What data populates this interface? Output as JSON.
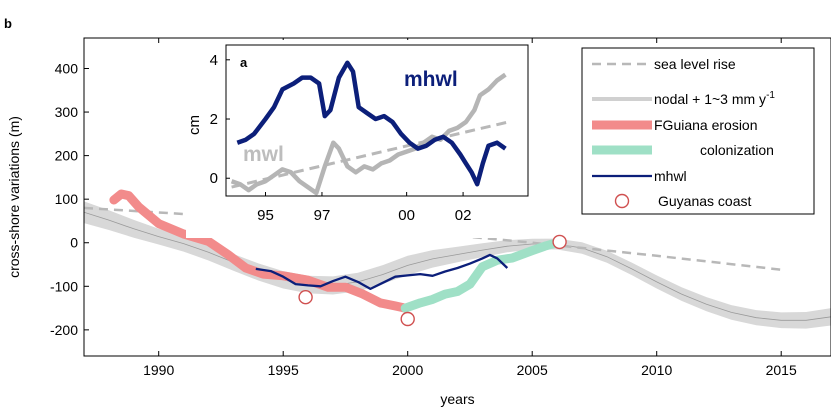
{
  "figure": {
    "panel_main_label": "b",
    "panel_inset_label": "a"
  },
  "chart_data": [
    {
      "type": "line",
      "panel": "b",
      "xlabel": "years",
      "ylabel": "cross-shore variations (m)",
      "xlim": [
        1987,
        2017
      ],
      "ylim": [
        -260,
        470
      ],
      "xticks": [
        1990,
        1995,
        2000,
        2005,
        2010,
        2015
      ],
      "yticks": [
        400,
        300,
        200,
        100,
        0,
        -100,
        -200
      ],
      "grid": false,
      "legend_position": "top-right",
      "series": [
        {
          "name": "sea level rise",
          "style": "dashed",
          "color": "#b8b8b8",
          "points": [
            [
              1987,
              80
            ],
            [
              1995,
              52
            ],
            [
              2000,
              27
            ],
            [
              2005,
              0
            ],
            [
              2010,
              -30
            ],
            [
              2015,
              -62
            ]
          ]
        },
        {
          "name": "nodal + 1~3 mm y-1",
          "style": "band",
          "color": "#d8d8d8",
          "line_color": "#9a9a9a",
          "points": [
            [
              1987,
              70
            ],
            [
              1988,
              52
            ],
            [
              1989,
              32
            ],
            [
              1990,
              14
            ],
            [
              1991,
              -2
            ],
            [
              1992,
              -22
            ],
            [
              1993,
              -45
            ],
            [
              1994,
              -67
            ],
            [
              1995,
              -85
            ],
            [
              1996,
              -96
            ],
            [
              1997,
              -98
            ],
            [
              1998,
              -90
            ],
            [
              1999,
              -73
            ],
            [
              2000,
              -52
            ],
            [
              2001,
              -37
            ],
            [
              2002,
              -27
            ],
            [
              2003,
              -17
            ],
            [
              2004,
              -8
            ],
            [
              2005,
              -3
            ],
            [
              2006,
              -3
            ],
            [
              2007,
              -12
            ],
            [
              2008,
              -32
            ],
            [
              2009,
              -60
            ],
            [
              2010,
              -90
            ],
            [
              2011,
              -118
            ],
            [
              2012,
              -141
            ],
            [
              2013,
              -160
            ],
            [
              2014,
              -172
            ],
            [
              2015,
              -178
            ],
            [
              2016,
              -178
            ],
            [
              2017,
              -170
            ]
          ],
          "band_halfwidth": [
            [
              1987,
              25
            ],
            [
              1990,
              18
            ],
            [
              1995,
              20
            ],
            [
              2000,
              22
            ],
            [
              2005,
              12
            ],
            [
              2010,
              15
            ],
            [
              2015,
              18
            ],
            [
              2017,
              20
            ]
          ]
        },
        {
          "name": "FGuiana erosion",
          "style": "thick",
          "color": "#f28b8b",
          "points": [
            [
              1988.2,
              98
            ],
            [
              1988.5,
              112
            ],
            [
              1988.8,
              108
            ],
            [
              1989.2,
              82
            ],
            [
              1990,
              44
            ],
            [
              1991,
              20
            ],
            [
              1992,
              3
            ],
            [
              1992.8,
              -28
            ],
            [
              1993.5,
              -58
            ],
            [
              1994.2,
              -72
            ],
            [
              1995,
              -76
            ],
            [
              1996,
              -86
            ],
            [
              1996.8,
              -102
            ],
            [
              1997.5,
              -102
            ],
            [
              1998.2,
              -118
            ],
            [
              1998.9,
              -138
            ],
            [
              1999.5,
              -145
            ],
            [
              1999.9,
              -150
            ]
          ]
        },
        {
          "name": "colonization",
          "style": "thick",
          "color": "#9fe0c6",
          "points": [
            [
              1999.9,
              -150
            ],
            [
              2000.5,
              -138
            ],
            [
              2001,
              -130
            ],
            [
              2001.5,
              -118
            ],
            [
              2002,
              -112
            ],
            [
              2002.5,
              -95
            ],
            [
              2003,
              -55
            ],
            [
              2003.6,
              -40
            ],
            [
              2004.2,
              -35
            ],
            [
              2005,
              -18
            ],
            [
              2005.5,
              -8
            ],
            [
              2006,
              0
            ]
          ]
        },
        {
          "name": "mhwl",
          "style": "solid",
          "color": "#0c1f7a",
          "points": [
            [
              1993.9,
              -60
            ],
            [
              1994.5,
              -65
            ],
            [
              1995,
              -78
            ],
            [
              1995.5,
              -95
            ],
            [
              1996,
              -98
            ],
            [
              1996.5,
              -100
            ],
            [
              1997,
              -88
            ],
            [
              1997.5,
              -78
            ],
            [
              1998,
              -90
            ],
            [
              1998.5,
              -106
            ],
            [
              1999,
              -92
            ],
            [
              1999.5,
              -78
            ],
            [
              2000,
              -75
            ],
            [
              2000.5,
              -72
            ],
            [
              2001,
              -76
            ],
            [
              2001.5,
              -66
            ],
            [
              2002,
              -58
            ],
            [
              2002.5,
              -48
            ],
            [
              2003,
              -36
            ],
            [
              2003.3,
              -28
            ],
            [
              2003.6,
              -36
            ],
            [
              2004,
              -58
            ]
          ]
        },
        {
          "name": "Guyanas coast",
          "style": "markers",
          "color": "#d05050",
          "points": [
            [
              1995.9,
              -125
            ],
            [
              2000,
              -175
            ],
            [
              2006.1,
              2
            ]
          ]
        }
      ]
    },
    {
      "type": "line",
      "panel": "a",
      "xlabel": "",
      "ylabel": "cm",
      "xlim": [
        1993.6,
        2004.3
      ],
      "ylim": [
        -0.6,
        4.5
      ],
      "xticks": [
        "95",
        "97",
        "00",
        "02"
      ],
      "xtick_values": [
        1995,
        1997,
        2000,
        2002
      ],
      "yticks": [
        4,
        2,
        0
      ],
      "series": [
        {
          "name": "mhwl",
          "label": "mhwl",
          "color": "#0c1f7a",
          "points": [
            [
              1994,
              1.2
            ],
            [
              1994.3,
              1.3
            ],
            [
              1994.6,
              1.5
            ],
            [
              1995,
              2.0
            ],
            [
              1995.3,
              2.4
            ],
            [
              1995.6,
              3.0
            ],
            [
              1996,
              3.2
            ],
            [
              1996.3,
              3.4
            ],
            [
              1996.6,
              3.4
            ],
            [
              1996.9,
              3.2
            ],
            [
              1997.1,
              2.1
            ],
            [
              1997.3,
              2.3
            ],
            [
              1997.6,
              3.4
            ],
            [
              1997.9,
              3.9
            ],
            [
              1998.1,
              3.6
            ],
            [
              1998.3,
              2.4
            ],
            [
              1998.6,
              2.2
            ],
            [
              1998.9,
              2.0
            ],
            [
              1999.2,
              2.1
            ],
            [
              1999.5,
              1.9
            ],
            [
              1999.8,
              1.5
            ],
            [
              2000.1,
              1.2
            ],
            [
              2000.4,
              1.0
            ],
            [
              2000.7,
              1.1
            ],
            [
              2001,
              1.3
            ],
            [
              2001.3,
              1.4
            ],
            [
              2001.6,
              1.2
            ],
            [
              2001.9,
              0.8
            ],
            [
              2002.1,
              0.5
            ],
            [
              2002.3,
              0.2
            ],
            [
              2002.5,
              -0.2
            ],
            [
              2002.7,
              0.5
            ],
            [
              2002.9,
              1.1
            ],
            [
              2003.2,
              1.2
            ],
            [
              2003.5,
              1.0
            ]
          ]
        },
        {
          "name": "mwl",
          "label": "mwl",
          "color": "#b5b5b5",
          "points": [
            [
              1993.8,
              -0.1
            ],
            [
              1994.1,
              -0.2
            ],
            [
              1994.4,
              -0.4
            ],
            [
              1994.7,
              -0.2
            ],
            [
              1995,
              -0.1
            ],
            [
              1995.3,
              0.1
            ],
            [
              1995.6,
              0.3
            ],
            [
              1995.9,
              0.2
            ],
            [
              1996.2,
              -0.1
            ],
            [
              1996.5,
              -0.3
            ],
            [
              1996.8,
              -0.5
            ],
            [
              1997.1,
              0.4
            ],
            [
              1997.4,
              1.2
            ],
            [
              1997.6,
              1.0
            ],
            [
              1997.9,
              0.4
            ],
            [
              1998.2,
              0.2
            ],
            [
              1998.5,
              0.4
            ],
            [
              1998.8,
              0.3
            ],
            [
              1999.1,
              0.5
            ],
            [
              1999.4,
              0.6
            ],
            [
              1999.7,
              0.8
            ],
            [
              2000,
              0.9
            ],
            [
              2000.3,
              1.0
            ],
            [
              2000.6,
              1.2
            ],
            [
              2000.9,
              1.4
            ],
            [
              2001.2,
              1.3
            ],
            [
              2001.5,
              1.6
            ],
            [
              2001.8,
              1.7
            ],
            [
              2002.1,
              1.9
            ],
            [
              2002.4,
              2.3
            ],
            [
              2002.6,
              2.8
            ],
            [
              2002.9,
              3.0
            ],
            [
              2003.2,
              3.3
            ],
            [
              2003.5,
              3.5
            ]
          ]
        },
        {
          "name": "trend",
          "style": "dashed",
          "color": "#b8b8b8",
          "points": [
            [
              1993.8,
              -0.3
            ],
            [
              2003.6,
              1.9
            ]
          ]
        }
      ]
    }
  ],
  "legend": [
    {
      "key": "sea level rise",
      "text": "sea level rise",
      "style": "dashed",
      "color": "#b8b8b8"
    },
    {
      "key": "nodal + 1~3 mm y-1",
      "text": "nodal + 1~3 mm y",
      "sup": "-1",
      "style": "line",
      "color": "#d0d0d0"
    },
    {
      "key": "FGuiana erosion",
      "text": "FGuiana erosion",
      "style": "thick",
      "color": "#f28b8b"
    },
    {
      "key": "colonization",
      "text": "colonization",
      "style": "thick",
      "color": "#9fe0c6"
    },
    {
      "key": "mhwl",
      "text": "mhwl",
      "style": "line",
      "color": "#0c1f7a"
    },
    {
      "key": "Guyanas coast",
      "text": "Guyanas coast",
      "style": "marker",
      "color": "#d05050"
    }
  ]
}
